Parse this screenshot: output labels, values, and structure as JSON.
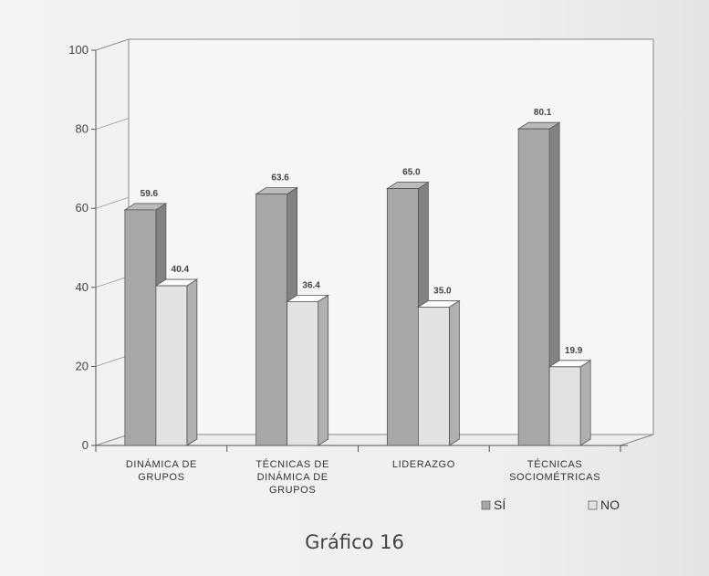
{
  "caption": "Gráfico 16",
  "chart_data": {
    "type": "bar",
    "categories": [
      [
        "DINÁMICA DE",
        "GRUPOS"
      ],
      [
        "TÉCNICAS DE",
        "DINÁMICA DE",
        "GRUPOS"
      ],
      [
        "LIDERAZGO"
      ],
      [
        "TÉCNICAS",
        "SOCIOMÉTRICAS"
      ]
    ],
    "series": [
      {
        "name": "SÍ",
        "values": [
          59.6,
          63.6,
          65.0,
          80.1
        ],
        "labels": [
          "59.6",
          "63.6",
          "65.0",
          "80.1"
        ],
        "color": "#a7a7a7"
      },
      {
        "name": "NO",
        "values": [
          40.4,
          36.4,
          35.0,
          19.9
        ],
        "labels": [
          "40.4",
          "36.4",
          "35.0",
          "19.9"
        ],
        "color": "#e2e2e2"
      }
    ],
    "ylim": [
      0,
      100
    ],
    "yticks": [
      "0",
      "20",
      "40",
      "60",
      "80",
      "100"
    ],
    "grid": false,
    "legend": "bottom-right"
  }
}
